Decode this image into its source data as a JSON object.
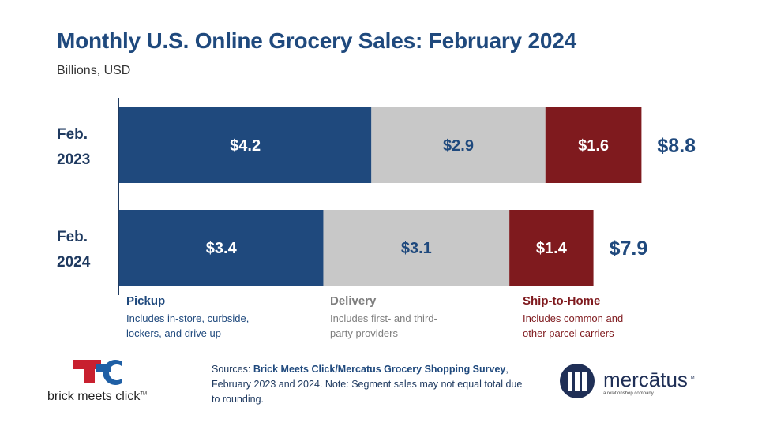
{
  "header": {
    "title": "Monthly U.S. Online Grocery Sales: February 2024",
    "subtitle": "Billions, USD"
  },
  "chart_data": {
    "type": "bar",
    "orientation": "horizontal",
    "stacked": true,
    "categories": [
      [
        "Feb.",
        "2023"
      ],
      [
        "Feb.",
        "2024"
      ]
    ],
    "series": [
      {
        "name": "Pickup",
        "color": "#1f497d",
        "label_color": "#ffffff",
        "values": [
          4.2,
          3.4
        ],
        "labels": [
          "$4.2",
          "$3.4"
        ]
      },
      {
        "name": "Delivery",
        "color": "#c8c8c8",
        "label_color": "#1f497d",
        "values": [
          2.9,
          3.1
        ],
        "labels": [
          "$2.9",
          "$3.1"
        ]
      },
      {
        "name": "Ship-to-Home",
        "color": "#7f1a1e",
        "label_color": "#ffffff",
        "values": [
          1.6,
          1.4
        ],
        "labels": [
          "$1.6",
          "$1.4"
        ]
      }
    ],
    "totals": [
      8.8,
      7.9
    ],
    "total_labels": [
      "$8.8",
      "$7.9"
    ],
    "total_color": "#1f497d",
    "xlim": [
      0,
      8.8
    ],
    "grid": false
  },
  "legend": [
    {
      "title": "Pickup",
      "description": "Includes in-store, curbside, lockers, and drive up",
      "color": "#1f497d"
    },
    {
      "title": "Delivery",
      "description": "Includes first- and third-party providers",
      "color": "#7f7f7f"
    },
    {
      "title": "Ship-to-Home",
      "description": "Includes common and other parcel carriers",
      "color": "#7f1a1e"
    }
  ],
  "footer": {
    "sources_prefix": "Sources: ",
    "sources_bold": "Brick Meets Click/Mercatus Grocery Shopping Survey",
    "sources_rest": ", February 2023 and 2024.  Note: Segment sales may not equal total due to rounding."
  },
  "logos": {
    "left_wordmark": "brick meets click",
    "left_tm": "TM",
    "right_wordmark": "mercātus",
    "right_tm": "TM",
    "right_tagline": "a relationshop company"
  }
}
